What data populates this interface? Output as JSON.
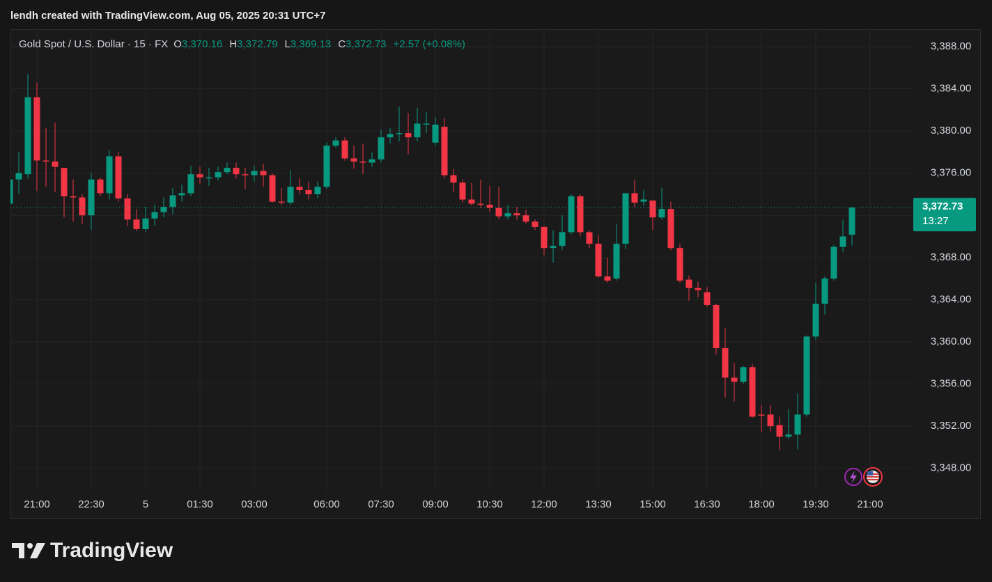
{
  "caption": "lendh created with TradingView.com, Aug 05, 2025 20:31 UTC+7",
  "footer": {
    "brand": "TradingView"
  },
  "chart_data": {
    "type": "candlestick",
    "symbol": "Gold Spot / U.S. Dollar · 15 · FX",
    "ohlc_header": [
      {
        "label": "O",
        "value": "3,370.16"
      },
      {
        "label": "H",
        "value": "3,372.79"
      },
      {
        "label": "L",
        "value": "3,369.13"
      },
      {
        "label": "C",
        "value": "3,372.73"
      }
    ],
    "change": "+2.57 (+0.08%)",
    "up_color": "#089981",
    "down_color": "#f23645",
    "grid": true,
    "ylim": [
      3345.8,
      3389.65
    ],
    "yticks": [
      {
        "value": 3348,
        "label": "3,348.00"
      },
      {
        "value": 3352,
        "label": "3,352.00"
      },
      {
        "value": 3356,
        "label": "3,356.00"
      },
      {
        "value": 3360,
        "label": "3,360.00"
      },
      {
        "value": 3364,
        "label": "3,364.00"
      },
      {
        "value": 3368,
        "label": "3,368.00"
      },
      {
        "value": 3372,
        "label": "3,372.00"
      },
      {
        "value": 3376,
        "label": "3,376.00"
      },
      {
        "value": 3380,
        "label": "3,380.00"
      },
      {
        "value": 3384,
        "label": "3,384.00"
      },
      {
        "value": 3388,
        "label": "3,388.00"
      }
    ],
    "last_price": {
      "value": 3372.73,
      "label": "3,372.73",
      "countdown": "13:27"
    },
    "categories": [
      null,
      null,
      null,
      "21:00",
      null,
      null,
      null,
      null,
      null,
      "22:30",
      null,
      null,
      null,
      null,
      null,
      "5",
      null,
      null,
      null,
      null,
      null,
      "01:30",
      null,
      null,
      null,
      null,
      null,
      "03:00",
      null,
      null,
      null,
      null,
      null,
      null,
      null,
      "06:00",
      null,
      null,
      null,
      null,
      null,
      "07:30",
      null,
      null,
      null,
      null,
      null,
      "09:00",
      null,
      null,
      null,
      null,
      null,
      "10:30",
      null,
      null,
      null,
      null,
      null,
      "12:00",
      null,
      null,
      null,
      null,
      null,
      "13:30",
      null,
      null,
      null,
      null,
      null,
      "15:00",
      null,
      null,
      null,
      null,
      null,
      "16:30",
      null,
      null,
      null,
      null,
      null,
      "18:00",
      null,
      null,
      null,
      null,
      null,
      "19:30",
      null,
      null,
      null,
      null,
      null,
      "21:00"
    ],
    "open": [
      3373.1,
      3375.4,
      3375.9,
      3383.2,
      3377.2,
      3377.1,
      3376.5,
      3373.8,
      3373.7,
      3372.0,
      3375.4,
      3374.1,
      3377.6,
      3373.6,
      3371.6,
      3370.7,
      3371.7,
      3372.3,
      3372.8,
      3373.9,
      3374.1,
      3375.9,
      3375.5,
      3375.6,
      3376.1,
      3376.5,
      3375.9,
      3375.8,
      3376.2,
      3375.8,
      3373.3,
      3373.2,
      3374.7,
      3374.4,
      3374.0,
      3374.7,
      3378.6,
      3379.1,
      3377.4,
      3377.1,
      3377.0,
      3377.3,
      3379.4,
      3379.7,
      3379.8,
      3379.4,
      3380.6,
      3378.9,
      3380.4,
      3375.8,
      3375.1,
      3373.5,
      3373.1,
      3373.0,
      3372.7,
      3371.9,
      3372.2,
      3372.0,
      3371.4,
      3370.9,
      3368.9,
      3369.1,
      3370.4,
      3373.8,
      3370.4,
      3369.3,
      3366.2,
      3366.0,
      3369.3,
      3374.1,
      3373.3,
      3373.4,
      3371.8,
      3372.6,
      3368.9,
      3365.9,
      3365.1,
      3364.7,
      3363.5,
      3359.4,
      3356.6,
      3356.2,
      3357.6,
      3353.1,
      3353.1,
      3352.1,
      3351.0,
      3351.2,
      3353.1,
      3360.5,
      3363.6,
      3366.0,
      3369.0,
      3370.16,
      null,
      null
    ],
    "high": [
      3375.5,
      3378.0,
      3385.4,
      3384.6,
      3380.3,
      3380.8,
      3376.5,
      3375.4,
      3374.0,
      3376.0,
      3375.6,
      3378.2,
      3378.0,
      3374.0,
      3372.6,
      3372.8,
      3373.0,
      3373.7,
      3374.6,
      3374.9,
      3376.7,
      3376.6,
      3376.5,
      3376.6,
      3377.0,
      3377.0,
      3376.5,
      3376.7,
      3376.9,
      3376.0,
      3374.6,
      3376.3,
      3375.5,
      3375.2,
      3375.2,
      3378.9,
      3379.4,
      3379.4,
      3378.6,
      3378.8,
      3378.0,
      3380.1,
      3380.3,
      3382.3,
      3381.7,
      3382.2,
      3381.8,
      3381.3,
      3381.2,
      3376.4,
      3375.4,
      3375.1,
      3375.4,
      3374.8,
      3374.7,
      3373.0,
      3372.8,
      3372.5,
      3371.6,
      3371.0,
      3370.6,
      3372.0,
      3374.0,
      3374.0,
      3370.6,
      3370.1,
      3368.0,
      3371.2,
      3374.1,
      3375.4,
      3374.4,
      3373.4,
      3374.6,
      3373.3,
      3369.3,
      3366.3,
      3365.7,
      3365.2,
      3363.6,
      3361.3,
      3358.0,
      3357.7,
      3357.9,
      3354.0,
      3354.0,
      3352.9,
      3353.6,
      3355.1,
      3360.6,
      3365.6,
      3366.2,
      3369.2,
      3371.6,
      3372.79,
      null,
      null
    ],
    "low": [
      3373.0,
      3374.0,
      3375.5,
      3374.3,
      3374.7,
      3374.2,
      3371.8,
      3371.4,
      3371.2,
      3370.6,
      3373.8,
      3373.5,
      3373.3,
      3371.0,
      3370.5,
      3370.4,
      3371.0,
      3371.8,
      3372.1,
      3373.3,
      3373.8,
      3375.0,
      3374.8,
      3375.3,
      3375.9,
      3375.5,
      3374.5,
      3375.2,
      3374.7,
      3373.2,
      3373.0,
      3373.0,
      3374.0,
      3373.5,
      3373.6,
      3374.5,
      3378.4,
      3377.2,
      3376.4,
      3375.9,
      3376.6,
      3377.0,
      3378.8,
      3379.0,
      3377.8,
      3379.0,
      3379.8,
      3378.6,
      3375.5,
      3374.2,
      3373.2,
      3372.9,
      3372.7,
      3372.3,
      3371.6,
      3371.6,
      3371.6,
      3371.2,
      3370.6,
      3368.2,
      3367.5,
      3368.7,
      3370.2,
      3370.0,
      3368.9,
      3366.1,
      3365.6,
      3365.8,
      3368.8,
      3372.8,
      3372.9,
      3370.6,
      3371.6,
      3368.7,
      3365.6,
      3363.9,
      3364.2,
      3363.3,
      3358.8,
      3354.7,
      3354.3,
      3356.0,
      3352.8,
      3351.4,
      3351.5,
      3349.7,
      3350.8,
      3349.8,
      3352.9,
      3360.2,
      3362.6,
      3365.8,
      3368.5,
      3369.13,
      null,
      null
    ],
    "close": [
      3375.4,
      3376.0,
      3383.2,
      3377.2,
      3377.1,
      3376.6,
      3373.8,
      3373.7,
      3372.0,
      3375.4,
      3374.1,
      3377.6,
      3373.6,
      3371.6,
      3370.7,
      3371.7,
      3372.3,
      3372.8,
      3373.9,
      3374.1,
      3375.9,
      3375.6,
      3375.6,
      3376.1,
      3376.5,
      3375.9,
      3375.8,
      3376.2,
      3375.8,
      3373.3,
      3373.2,
      3374.7,
      3374.4,
      3374.0,
      3374.7,
      3378.6,
      3379.1,
      3377.4,
      3377.1,
      3377.0,
      3377.3,
      3379.4,
      3379.7,
      3379.8,
      3379.4,
      3380.7,
      3380.7,
      3380.6,
      3375.8,
      3375.1,
      3373.5,
      3373.1,
      3373.0,
      3372.7,
      3371.9,
      3372.2,
      3372.0,
      3371.4,
      3370.9,
      3368.9,
      3369.1,
      3370.4,
      3373.8,
      3370.4,
      3369.3,
      3366.2,
      3365.8,
      3369.3,
      3374.1,
      3373.2,
      3373.5,
      3371.8,
      3372.6,
      3368.9,
      3365.8,
      3365.1,
      3364.9,
      3363.5,
      3359.4,
      3356.6,
      3356.2,
      3357.6,
      3352.9,
      3353.0,
      3352.0,
      3351.0,
      3351.2,
      3353.1,
      3360.5,
      3363.6,
      3366.0,
      3369.0,
      3370.0,
      3372.73,
      null,
      null
    ]
  }
}
